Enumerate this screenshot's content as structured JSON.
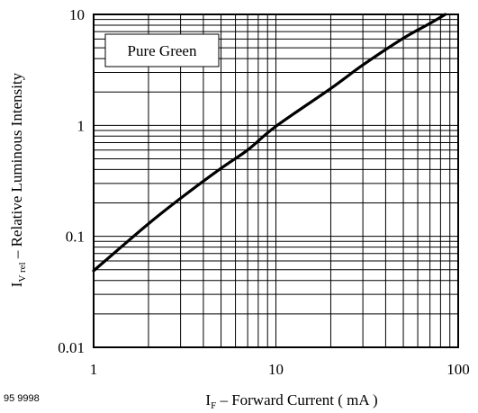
{
  "chart_data": {
    "type": "line",
    "x_scale": "log",
    "y_scale": "log",
    "xlim": [
      1,
      100
    ],
    "ylim": [
      0.01,
      10
    ],
    "x_ticks": [
      1,
      10,
      100
    ],
    "x_tick_labels": [
      "1",
      "10",
      "100"
    ],
    "y_ticks": [
      0.01,
      0.1,
      1,
      10
    ],
    "y_tick_labels": [
      "0.01",
      "0.1",
      "1",
      "10"
    ],
    "grid": true,
    "xlabel": {
      "main": "I",
      "sub": "F",
      "rest": " – Forward Current ( mA )"
    },
    "ylabel": {
      "main": "I",
      "sub": "V rel",
      "rest": "  – Relative Luminous Intensity"
    },
    "legend": {
      "text": "Pure Green",
      "position": "top-left"
    },
    "series": [
      {
        "name": "Pure Green",
        "color": "#000000",
        "x": [
          1,
          2,
          3,
          5,
          7,
          10,
          20,
          30,
          50,
          70,
          85
        ],
        "y": [
          0.049,
          0.13,
          0.22,
          0.41,
          0.6,
          0.98,
          2.15,
          3.5,
          6.1,
          8.3,
          10
        ]
      }
    ]
  },
  "figure_id": "95 9998"
}
